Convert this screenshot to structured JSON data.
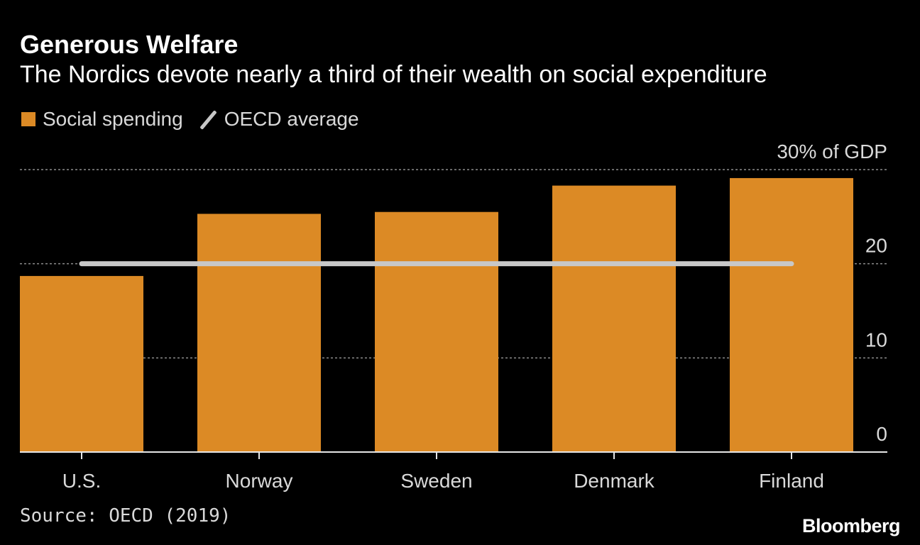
{
  "header": {
    "title": "Generous Welfare",
    "subtitle": "The Nordics devote nearly a third of their wealth on social expenditure"
  },
  "legend": {
    "bar_label": "Social spending",
    "line_label": "OECD average"
  },
  "footer": {
    "source": "Source: OECD (2019)",
    "brand": "Bloomberg"
  },
  "colors": {
    "bar": "#dc8a25",
    "line": "#c8c8c8",
    "gridline": "#8c8c8c",
    "text": "#d9d9d9",
    "background": "#000000"
  },
  "chart_data": {
    "type": "bar",
    "categories": [
      "U.S.",
      "Norway",
      "Sweden",
      "Denmark",
      "Finland"
    ],
    "series": [
      {
        "name": "Social spending",
        "type": "bar",
        "values": [
          18.7,
          25.3,
          25.5,
          28.3,
          29.1
        ]
      },
      {
        "name": "OECD average",
        "type": "line",
        "value": 20.0
      }
    ],
    "ylim": [
      0,
      30
    ],
    "yticks": [
      0,
      10,
      20,
      30
    ],
    "ytick_labels": [
      "0",
      "10",
      "20",
      "30% of GDP"
    ],
    "yaxis_position": "right",
    "grid": true,
    "legend_position": "top-left"
  }
}
